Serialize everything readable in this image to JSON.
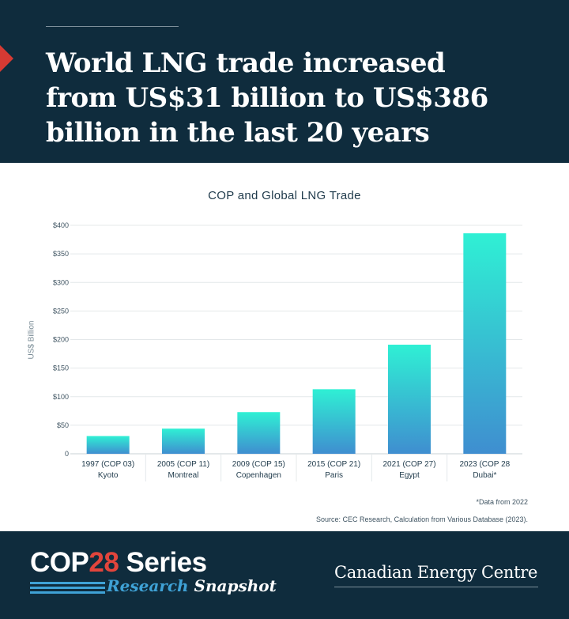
{
  "header": {
    "headline_lines": [
      "World LNG trade increased",
      "from US$31 billion to US$386",
      "billion in the last 20 years"
    ]
  },
  "chart_data": {
    "type": "bar",
    "title": "COP and Global LNG Trade",
    "xlabel": "",
    "ylabel": "US$ Billion",
    "categories": [
      [
        "1997 (COP 03)",
        "Kyoto"
      ],
      [
        "2005 (COP 11)",
        "Montreal"
      ],
      [
        "2009 (COP 15)",
        "Copenhagen"
      ],
      [
        "2015 (COP 21)",
        "Paris"
      ],
      [
        "2021 (COP 27)",
        "Egypt"
      ],
      [
        "2023 (COP 28",
        "Dubai*"
      ]
    ],
    "values": [
      31,
      44,
      73,
      113,
      191,
      386
    ],
    "ylim": [
      0,
      400
    ],
    "yticks": [
      0,
      50,
      100,
      150,
      200,
      250,
      300,
      350,
      400
    ],
    "ytick_labels": [
      "0",
      "$50",
      "$100",
      "$150",
      "$200",
      "$250",
      "$300",
      "$350",
      "$400"
    ],
    "grid": true,
    "bar_gradient": {
      "top": "#2ff0d4",
      "bottom": "#3f8ed0"
    }
  },
  "notes": {
    "footnote": "*Data from 2022",
    "source": "Source: CEC Research, Calculation from Various Database (2023)."
  },
  "footer": {
    "brand_cop": "COP",
    "brand_num": "28",
    "brand_series": "Series",
    "brand_research": "Research",
    "brand_snapshot": "Snapshot",
    "org_name": "Canadian Energy Centre"
  },
  "colors": {
    "navy": "#0f2c3d",
    "accent_red": "#d63a33",
    "accent_blue": "#3fa2d6"
  }
}
